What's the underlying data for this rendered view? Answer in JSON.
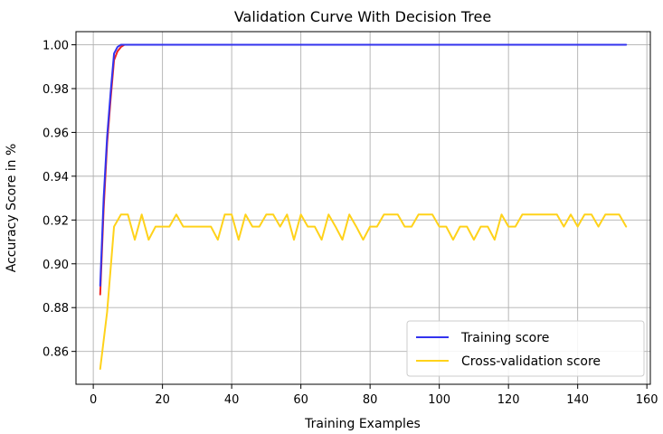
{
  "chart_data": {
    "type": "line",
    "title": "Validation Curve With Decision Tree",
    "xlabel": "Training Examples",
    "ylabel": "Accuracy Score in %",
    "xlim": [
      -5,
      161
    ],
    "ylim": [
      0.845,
      1.006
    ],
    "xticks": [
      0,
      20,
      40,
      60,
      80,
      100,
      120,
      140,
      160
    ],
    "xtick_labels": [
      "0",
      "20",
      "40",
      "60",
      "80",
      "100",
      "120",
      "140",
      "160"
    ],
    "yticks": [
      0.86,
      0.88,
      0.9,
      0.92,
      0.94,
      0.96,
      0.98,
      1.0
    ],
    "ytick_labels": [
      "0.86",
      "0.88",
      "0.90",
      "0.92",
      "0.94",
      "0.96",
      "0.98",
      "1.00"
    ],
    "grid": true,
    "legend_position": "lower-right",
    "series": [
      {
        "name": "Training score",
        "color": "#3333ee",
        "x": [
          2,
          3,
          4,
          5,
          6,
          7,
          8,
          10,
          20,
          40,
          60,
          80,
          100,
          120,
          140,
          154
        ],
        "y": [
          0.89,
          0.93,
          0.958,
          0.978,
          0.996,
          0.999,
          1.0,
          1.0,
          1.0,
          1.0,
          1.0,
          1.0,
          1.0,
          1.0,
          1.0,
          1.0
        ]
      },
      {
        "name": "",
        "color": "#ee2222",
        "x": [
          2,
          3,
          4,
          5,
          6,
          7,
          8,
          9,
          10
        ],
        "y": [
          0.886,
          0.925,
          0.955,
          0.975,
          0.993,
          0.997,
          0.999,
          1.0,
          1.0
        ]
      },
      {
        "name": "Cross-validation score",
        "color": "#ffd21a",
        "x": [
          2,
          4,
          6,
          8,
          10,
          12,
          14,
          16,
          18,
          20,
          22,
          24,
          26,
          28,
          30,
          32,
          34,
          36,
          38,
          40,
          42,
          44,
          46,
          48,
          50,
          52,
          54,
          56,
          58,
          60,
          62,
          64,
          66,
          68,
          70,
          72,
          74,
          76,
          78,
          80,
          82,
          84,
          86,
          88,
          90,
          92,
          94,
          96,
          98,
          100,
          102,
          104,
          106,
          108,
          110,
          112,
          114,
          116,
          118,
          120,
          122,
          124,
          126,
          128,
          130,
          132,
          134,
          136,
          138,
          140,
          142,
          144,
          146,
          148,
          150,
          152,
          154
        ],
        "y": [
          0.852,
          0.878,
          0.917,
          0.9225,
          0.9225,
          0.911,
          0.9225,
          0.911,
          0.917,
          0.917,
          0.917,
          0.9225,
          0.917,
          0.917,
          0.917,
          0.917,
          0.917,
          0.911,
          0.9225,
          0.9225,
          0.911,
          0.9225,
          0.917,
          0.917,
          0.9225,
          0.9225,
          0.917,
          0.9225,
          0.911,
          0.9225,
          0.917,
          0.917,
          0.911,
          0.9225,
          0.917,
          0.911,
          0.9225,
          0.917,
          0.911,
          0.917,
          0.917,
          0.9225,
          0.9225,
          0.9225,
          0.917,
          0.917,
          0.9225,
          0.9225,
          0.9225,
          0.917,
          0.917,
          0.911,
          0.917,
          0.917,
          0.911,
          0.917,
          0.917,
          0.911,
          0.9225,
          0.917,
          0.917,
          0.9225,
          0.9225,
          0.9225,
          0.9225,
          0.9225,
          0.9225,
          0.917,
          0.9225,
          0.917,
          0.9225,
          0.9225,
          0.917,
          0.9225,
          0.9225,
          0.9225,
          0.917
        ]
      }
    ]
  }
}
